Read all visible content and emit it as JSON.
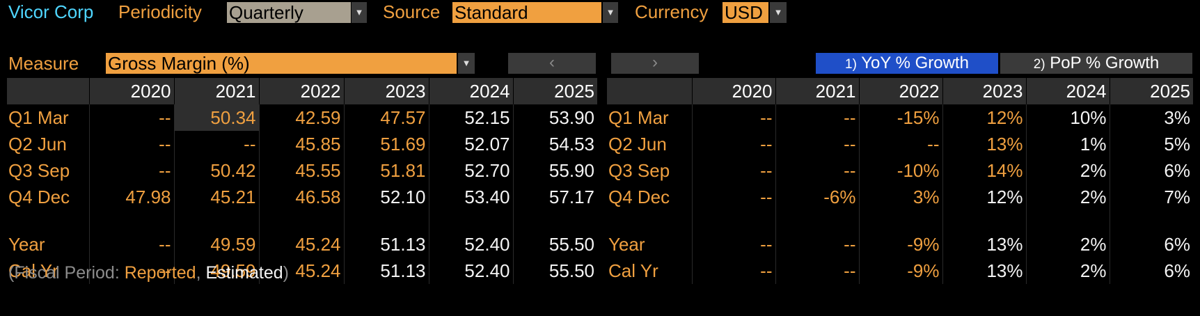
{
  "toolbar": {
    "company": "Vicor Corp",
    "periodicity_label": "Periodicity",
    "periodicity_value": "Quarterly",
    "source_label": "Source",
    "source_value": "Standard",
    "currency_label": "Currency",
    "currency_value": "USD"
  },
  "measure": {
    "label": "Measure",
    "value": "Gross Margin (%)",
    "prev": "‹",
    "next": "›"
  },
  "tabs": [
    {
      "num": "1)",
      "label": "YoY % Growth",
      "active": true
    },
    {
      "num": "2)",
      "label": "PoP % Growth",
      "active": false
    }
  ],
  "left_table": {
    "headers": [
      "",
      "2020",
      "2021",
      "2022",
      "2023",
      "2024",
      "2025"
    ],
    "rows": [
      {
        "label": "Q1 Mar",
        "cells": [
          "--",
          "50.34",
          "42.59",
          "47.57",
          "52.15",
          "53.90"
        ]
      },
      {
        "label": "Q2 Jun",
        "cells": [
          "--",
          "--",
          "45.85",
          "51.69",
          "52.07",
          "54.53"
        ]
      },
      {
        "label": "Q3 Sep",
        "cells": [
          "--",
          "50.42",
          "45.55",
          "51.81",
          "52.70",
          "55.90"
        ]
      },
      {
        "label": "Q4 Dec",
        "cells": [
          "47.98",
          "45.21",
          "46.58",
          "52.10",
          "53.40",
          "57.17"
        ]
      },
      {
        "label": "Year",
        "cells": [
          "--",
          "49.59",
          "45.24",
          "51.13",
          "52.40",
          "55.50"
        ]
      },
      {
        "label": "Cal Yr",
        "cells": [
          "--",
          "49.59",
          "45.24",
          "51.13",
          "52.40",
          "55.50"
        ]
      }
    ]
  },
  "right_table": {
    "headers": [
      "",
      "2020",
      "2021",
      "2022",
      "2023",
      "2024",
      "2025"
    ],
    "rows": [
      {
        "label": "Q1 Mar",
        "cells": [
          "--",
          "--",
          "-15%",
          "12%",
          "10%",
          "3%"
        ]
      },
      {
        "label": "Q2 Jun",
        "cells": [
          "--",
          "--",
          "--",
          "13%",
          "1%",
          "5%"
        ]
      },
      {
        "label": "Q3 Sep",
        "cells": [
          "--",
          "--",
          "-10%",
          "14%",
          "2%",
          "6%"
        ]
      },
      {
        "label": "Q4 Dec",
        "cells": [
          "--",
          "-6%",
          "3%",
          "12%",
          "2%",
          "7%"
        ]
      },
      {
        "label": "Year",
        "cells": [
          "--",
          "--",
          "-9%",
          "13%",
          "2%",
          "6%"
        ]
      },
      {
        "label": "Cal Yr",
        "cells": [
          "--",
          "--",
          "-9%",
          "13%",
          "2%",
          "6%"
        ]
      }
    ]
  },
  "footer": {
    "open": "(Fiscal Period: ",
    "reported": "Reported",
    "sep": ", ",
    "estimated": "Estimated",
    "close": ")"
  },
  "colors": {
    "reported": "#f0a040",
    "estimated": "#f4f4f4",
    "company": "#4fd6ff",
    "active_tab": "#1f4fc8",
    "inactive_tab": "#3a3a3a",
    "field": "#f0a040",
    "periodicity_field": "#a8a090"
  }
}
